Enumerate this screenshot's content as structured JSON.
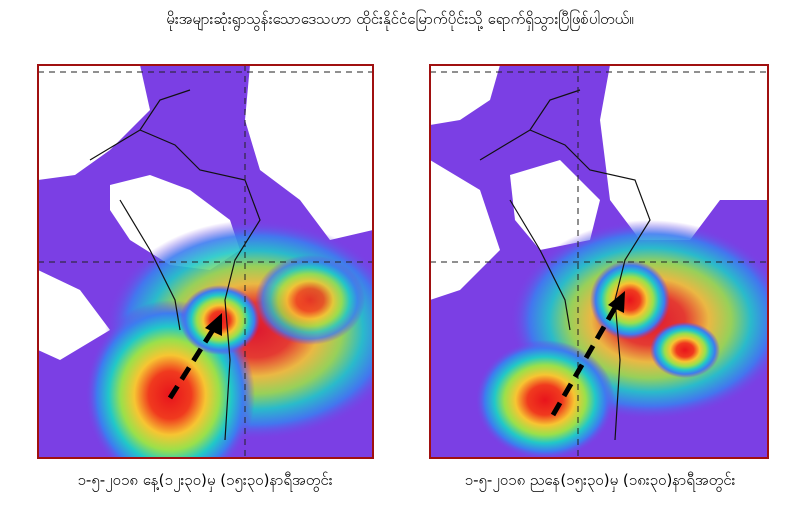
{
  "title": "မိုးအများဆုံးရွာသွန်းသောဒေသဟာ ထိုင်းနိုင်ငံမြောက်ပိုင်းသို့ ရောက်ရှိသွားပြီဖြစ်ပါတယ်။",
  "panels": [
    {
      "caption": "၁-၅-၂၀၁၈ နေ့(၁၂း၃၀)မှ (၁၅း၃၀)နာရီအတွင်း"
    },
    {
      "caption": "၁-၅-၂၀၁၈ ညနေ(၁၅း၃၀)မှ (၁၈း၃၀)နာရီအတွင်း"
    }
  ]
}
